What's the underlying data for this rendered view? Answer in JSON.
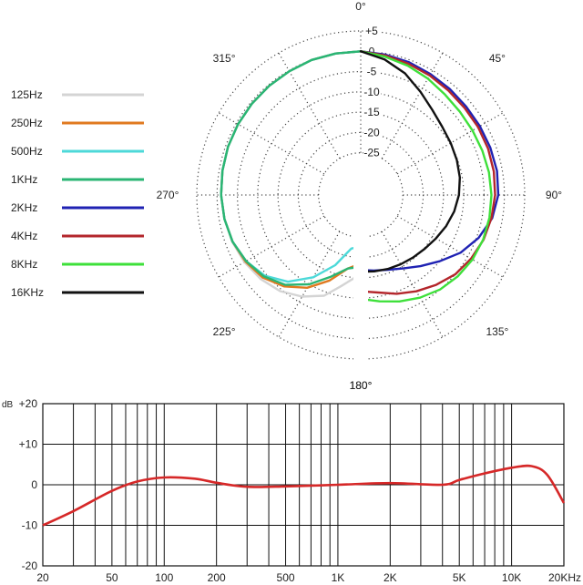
{
  "chart_data": [
    {
      "type": "polar",
      "angle_labels": [
        {
          "angle": 0,
          "label": "0°"
        },
        {
          "angle": 45,
          "label": "45°"
        },
        {
          "angle": 90,
          "label": "90°"
        },
        {
          "angle": 135,
          "label": "135°"
        },
        {
          "angle": 180,
          "label": "180°"
        },
        {
          "angle": 225,
          "label": "225°"
        },
        {
          "angle": 270,
          "label": "270°"
        },
        {
          "angle": 315,
          "label": "315°"
        }
      ],
      "radial_ticks": [
        "+5",
        "0",
        "-5",
        "-10",
        "-15",
        "-20",
        "-25"
      ],
      "radial_range": [
        -30,
        5
      ],
      "series": [
        {
          "name": "125Hz",
          "color": "#d4d4d4",
          "points": [
            [
              0,
              0
            ],
            [
              -10,
              0
            ],
            [
              -20,
              0
            ],
            [
              -30,
              -0.2
            ],
            [
              -40,
              -0.3
            ],
            [
              -50,
              -0.4
            ],
            [
              -60,
              -0.5
            ],
            [
              -70,
              -0.6
            ],
            [
              -80,
              -0.8
            ],
            [
              -90,
              -1
            ],
            [
              -100,
              -1.3
            ],
            [
              -110,
              -1.7
            ],
            [
              -120,
              -2.3
            ],
            [
              -130,
              -3.2
            ],
            [
              -140,
              -4.5
            ],
            [
              -150,
              -6.5
            ],
            [
              -160,
              -9
            ],
            [
              -168,
              -12.5
            ],
            [
              -176,
              -15
            ]
          ]
        },
        {
          "name": "250Hz",
          "color": "#e07a20",
          "points": [
            [
              0,
              0
            ],
            [
              -10,
              0
            ],
            [
              -20,
              0
            ],
            [
              -30,
              -0.2
            ],
            [
              -40,
              -0.3
            ],
            [
              -50,
              -0.4
            ],
            [
              -60,
              -0.5
            ],
            [
              -70,
              -0.6
            ],
            [
              -80,
              -0.8
            ],
            [
              -90,
              -1
            ],
            [
              -100,
              -1.3
            ],
            [
              -110,
              -1.8
            ],
            [
              -120,
              -2.6
            ],
            [
              -130,
              -3.8
            ],
            [
              -140,
              -6
            ],
            [
              -150,
              -9
            ],
            [
              -160,
              -13
            ],
            [
              -170,
              -17
            ],
            [
              -176,
              -18
            ]
          ]
        },
        {
          "name": "500Hz",
          "color": "#4dd9d9",
          "points": [
            [
              0,
              0
            ],
            [
              -10,
              0
            ],
            [
              -20,
              0
            ],
            [
              -30,
              -0.2
            ],
            [
              -40,
              -0.3
            ],
            [
              -50,
              -0.4
            ],
            [
              -60,
              -0.5
            ],
            [
              -70,
              -0.6
            ],
            [
              -80,
              -0.8
            ],
            [
              -90,
              -1
            ],
            [
              -100,
              -1.3
            ],
            [
              -110,
              -1.8
            ],
            [
              -120,
              -2.8
            ],
            [
              -130,
              -4.5
            ],
            [
              -140,
              -7.5
            ],
            [
              -150,
              -12
            ],
            [
              -160,
              -17
            ],
            [
              -170,
              -22
            ],
            [
              -176,
              -22.5
            ]
          ]
        },
        {
          "name": "1KHz",
          "color": "#2ab573",
          "points": [
            [
              0,
              0
            ],
            [
              -10,
              0
            ],
            [
              -20,
              0
            ],
            [
              -30,
              -0.2
            ],
            [
              -40,
              -0.3
            ],
            [
              -50,
              -0.4
            ],
            [
              -60,
              -0.5
            ],
            [
              -70,
              -0.6
            ],
            [
              -80,
              -0.8
            ],
            [
              -90,
              -1
            ],
            [
              -100,
              -1.3
            ],
            [
              -110,
              -1.8
            ],
            [
              -120,
              -2.8
            ],
            [
              -130,
              -4.2
            ],
            [
              -140,
              -6.5
            ],
            [
              -150,
              -10
            ],
            [
              -160,
              -14
            ],
            [
              -170,
              -17
            ],
            [
              -176,
              -17.5
            ]
          ]
        },
        {
          "name": "2KHz",
          "color": "#1f22b3",
          "points": [
            [
              0,
              0
            ],
            [
              10,
              -0.3
            ],
            [
              20,
              -0.6
            ],
            [
              30,
              -1
            ],
            [
              40,
              -1.3
            ],
            [
              50,
              -1.5
            ],
            [
              60,
              -1.5
            ],
            [
              70,
              -1.4
            ],
            [
              80,
              -1.3
            ],
            [
              90,
              -1.5
            ],
            [
              100,
              -2.5
            ],
            [
              110,
              -4.5
            ],
            [
              120,
              -7
            ],
            [
              130,
              -10
            ],
            [
              140,
              -12.5
            ],
            [
              150,
              -14.5
            ],
            [
              160,
              -15.8
            ],
            [
              170,
              -16.5
            ],
            [
              176,
              -16.8
            ]
          ]
        },
        {
          "name": "4KHz",
          "color": "#b3262b",
          "points": [
            [
              0,
              0
            ],
            [
              10,
              -0.5
            ],
            [
              20,
              -1
            ],
            [
              30,
              -1.4
            ],
            [
              40,
              -1.8
            ],
            [
              50,
              -2
            ],
            [
              60,
              -2
            ],
            [
              70,
              -2
            ],
            [
              80,
              -2.1
            ],
            [
              90,
              -2.3
            ],
            [
              100,
              -2.7
            ],
            [
              110,
              -3.2
            ],
            [
              120,
              -4
            ],
            [
              130,
              -5
            ],
            [
              140,
              -6.5
            ],
            [
              150,
              -8
            ],
            [
              160,
              -9.5
            ],
            [
              170,
              -11
            ],
            [
              176,
              -11.5
            ]
          ]
        },
        {
          "name": "8KHz",
          "color": "#3ee03a",
          "points": [
            [
              0,
              0
            ],
            [
              10,
              -0.8
            ],
            [
              20,
              -1.5
            ],
            [
              30,
              -2.3
            ],
            [
              40,
              -3.1
            ],
            [
              50,
              -3.5
            ],
            [
              60,
              -3.6
            ],
            [
              70,
              -3.5
            ],
            [
              80,
              -3.3
            ],
            [
              90,
              -3.2
            ],
            [
              100,
              -3.2
            ],
            [
              110,
              -3.3
            ],
            [
              120,
              -3.6
            ],
            [
              130,
              -4.2
            ],
            [
              140,
              -5
            ],
            [
              150,
              -6.2
            ],
            [
              160,
              -7.5
            ],
            [
              170,
              -8.8
            ],
            [
              176,
              -9.5
            ]
          ]
        },
        {
          "name": "16KHz",
          "color": "#111111",
          "points": [
            [
              0,
              0
            ],
            [
              10,
              -1.5
            ],
            [
              20,
              -3.5
            ],
            [
              30,
              -6
            ],
            [
              40,
              -8
            ],
            [
              50,
              -9.2
            ],
            [
              60,
              -9.8
            ],
            [
              70,
              -10.2
            ],
            [
              80,
              -10.6
            ],
            [
              90,
              -11.2
            ],
            [
              100,
              -12
            ],
            [
              110,
              -13
            ],
            [
              120,
              -14
            ],
            [
              130,
              -14.8
            ],
            [
              140,
              -15.3
            ],
            [
              150,
              -15.7
            ],
            [
              160,
              -16
            ],
            [
              170,
              -16.3
            ],
            [
              176,
              -16.5
            ]
          ]
        }
      ]
    },
    {
      "type": "line",
      "ylabel": "dB",
      "x_scale": "log",
      "xlim": [
        20,
        20000
      ],
      "ylim": [
        -20,
        20
      ],
      "y_tick_labels": [
        "+20",
        "+10",
        "0",
        "-10",
        "-20"
      ],
      "y_tick_values": [
        20,
        10,
        0,
        -10,
        -20
      ],
      "x_tick_labels": [
        "20",
        "50",
        "100",
        "200",
        "500",
        "1K",
        "2K",
        "5K",
        "10K",
        "20KHz"
      ],
      "x_tick_values": [
        20,
        50,
        100,
        200,
        500,
        1000,
        2000,
        5000,
        10000,
        20000
      ],
      "grid": true,
      "series": [
        {
          "color": "#d62828",
          "x": [
            20,
            30,
            50,
            70,
            100,
            150,
            200,
            300,
            500,
            1000,
            2000,
            4000,
            5000,
            7000,
            10000,
            13000,
            16000,
            20000
          ],
          "y": [
            -10,
            -6.5,
            -1.5,
            0.8,
            1.8,
            1.5,
            0.5,
            -0.5,
            -0.4,
            0,
            0.4,
            0,
            1.2,
            2.8,
            4.2,
            4.6,
            2.5,
            -4.5
          ]
        }
      ]
    }
  ]
}
